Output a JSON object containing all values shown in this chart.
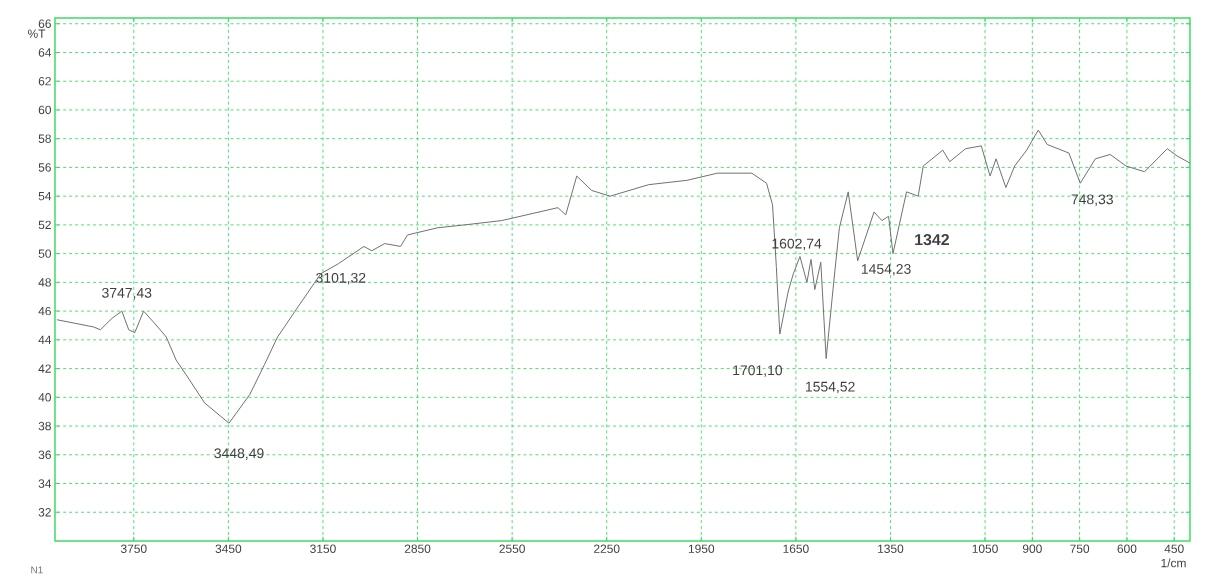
{
  "chart_data": {
    "type": "line",
    "xlabel": "1/cm",
    "ylabel": "%T",
    "xlim": [
      4000,
      400
    ],
    "ylim": [
      30,
      66.4
    ],
    "xticks": [
      3750,
      3450,
      3150,
      2850,
      2550,
      2250,
      1950,
      1650,
      1350,
      1050,
      900,
      750,
      600,
      450
    ],
    "yticks": [
      32,
      34,
      36,
      38,
      40,
      42,
      44,
      46,
      48,
      50,
      52,
      54,
      56,
      58,
      60,
      62,
      64,
      66
    ],
    "grid": true,
    "marker": "none",
    "line_style": "solid",
    "series": [
      {
        "color": "#707070",
        "x": [
          3994,
          3878,
          3856,
          3819,
          3788,
          3766,
          3747,
          3719,
          3682,
          3647,
          3616,
          3585,
          3525,
          3448,
          3382,
          3335,
          3294,
          3229,
          3157,
          3101,
          3020,
          2995,
          2954,
          2904,
          2882,
          2786,
          2701,
          2583,
          2405,
          2380,
          2345,
          2298,
          2239,
          2117,
          1996,
          1899,
          1790,
          1743,
          1724,
          1712,
          1701,
          1674,
          1658,
          1637,
          1615,
          1602,
          1590,
          1571,
          1554,
          1530,
          1512,
          1484,
          1454,
          1402,
          1377,
          1356,
          1342,
          1299,
          1262,
          1246,
          1184,
          1162,
          1112,
          1062,
          1034,
          1015,
          984,
          956,
          918,
          881,
          853,
          784,
          748,
          700,
          653,
          603,
          544,
          472,
          441,
          400
        ],
        "values": [
          45.4,
          44.9,
          44.7,
          45.5,
          46.0,
          44.7,
          44.5,
          46.0,
          45.1,
          44.2,
          42.6,
          41.6,
          39.6,
          38.2,
          40.2,
          42.3,
          44.2,
          46.3,
          48.6,
          49.3,
          50.5,
          50.2,
          50.7,
          50.5,
          51.3,
          51.8,
          52.0,
          52.3,
          53.2,
          52.7,
          55.4,
          54.4,
          54.0,
          54.8,
          55.1,
          55.6,
          55.6,
          54.9,
          53.4,
          49.1,
          44.4,
          47.4,
          48.6,
          49.8,
          48.0,
          49.6,
          47.5,
          49.4,
          42.7,
          48.0,
          51.8,
          54.3,
          49.5,
          52.9,
          52.3,
          52.6,
          50.0,
          54.3,
          54.0,
          56.1,
          57.2,
          56.4,
          57.3,
          57.5,
          55.4,
          56.6,
          54.6,
          56.1,
          57.2,
          58.6,
          57.6,
          57.0,
          54.9,
          56.6,
          56.9,
          56.1,
          55.7,
          57.3,
          56.8,
          56.3
        ]
      }
    ],
    "annotations": [
      {
        "text": "3747,43",
        "x": 3747,
        "y": 44.5
      },
      {
        "text": "3448,49",
        "x": 3448,
        "y": 38.2
      },
      {
        "text": "3101,32",
        "x": 3101,
        "y": 49.3
      },
      {
        "text": "1602,74",
        "x": 1602,
        "y": 49.6
      },
      {
        "text": "1701,10",
        "x": 1701,
        "y": 44.4
      },
      {
        "text": "1554,52",
        "x": 1554,
        "y": 42.7
      },
      {
        "text": "1454,23",
        "x": 1454,
        "y": 49.5
      },
      {
        "text": "1342",
        "x": 1342,
        "y": 50.0
      },
      {
        "text": "748,33",
        "x": 748,
        "y": 54.9
      },
      "N1"
    ]
  }
}
